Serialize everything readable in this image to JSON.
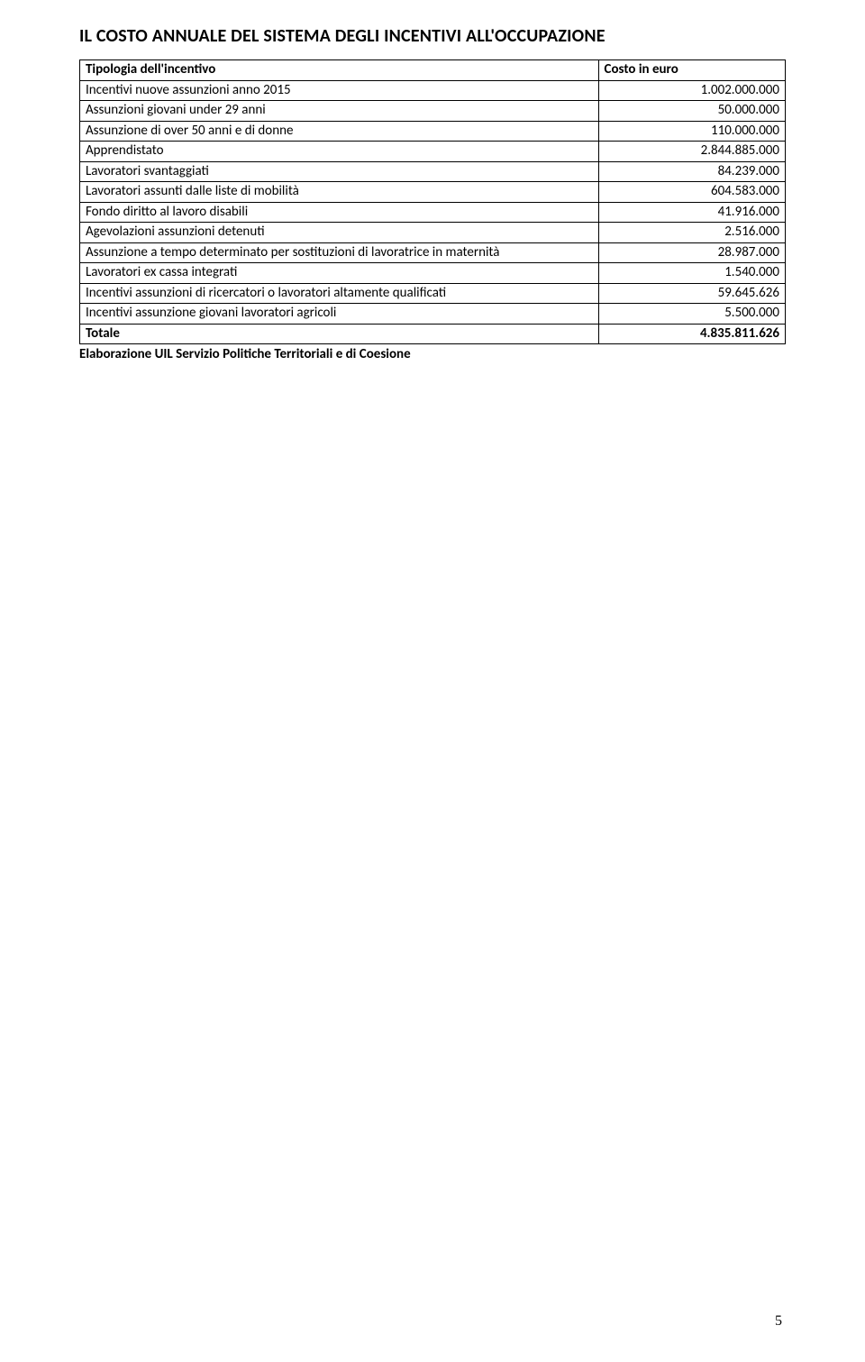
{
  "title": "IL COSTO ANNUALE DEL SISTEMA DEGLI INCENTIVI ALL'OCCUPAZIONE",
  "table": {
    "header": {
      "left": "Tipologia dell'incentivo",
      "right": "Costo in euro"
    },
    "rows": [
      {
        "label": "Incentivi nuove assunzioni anno 2015",
        "value": "1.002.000.000"
      },
      {
        "label": "Assunzioni giovani under 29 anni",
        "value": "50.000.000"
      },
      {
        "label": "Assunzione di over 50 anni e di donne",
        "value": "110.000.000"
      },
      {
        "label": "Apprendistato",
        "value": "2.844.885.000"
      },
      {
        "label": "Lavoratori svantaggiati",
        "value": "84.239.000"
      },
      {
        "label": "Lavoratori assunti dalle liste di mobilità",
        "value": "604.583.000"
      },
      {
        "label": "Fondo diritto al lavoro disabili",
        "value": "41.916.000"
      },
      {
        "label": "Agevolazioni assunzioni detenuti",
        "value": "2.516.000"
      },
      {
        "label": "Assunzione a tempo determinato per sostituzioni di lavoratrice in maternità",
        "value": "28.987.000"
      },
      {
        "label": "Lavoratori ex cassa integrati",
        "value": "1.540.000"
      },
      {
        "label": "Incentivi assunzioni di ricercatori o lavoratori altamente qualificati",
        "value": "59.645.626"
      },
      {
        "label": "Incentivi assunzione giovani lavoratori agricoli",
        "value": "5.500.000"
      }
    ],
    "total": {
      "label": "Totale",
      "value": "4.835.811.626"
    }
  },
  "footnote": "Elaborazione UIL Servizio Politiche Territoriali e di Coesione",
  "page_number": "5"
}
